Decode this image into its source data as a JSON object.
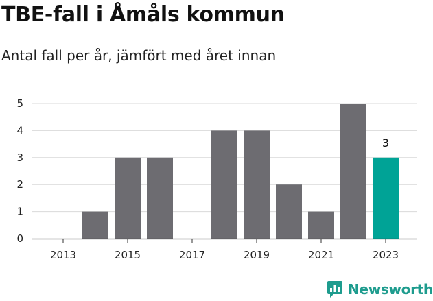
{
  "title": "TBE-fall i Åmåls kommun",
  "subtitle": "Antal fall per år, jämfört med året innan",
  "brand": {
    "name": "Newsworthy",
    "icon": "newsworthy-logo-icon",
    "color": "#1e9c8e"
  },
  "chart_data": {
    "type": "bar",
    "title": "TBE-fall i Åmåls kommun",
    "subtitle": "Antal fall per år, jämfört med året innan",
    "xlabel": "",
    "ylabel": "",
    "categories": [
      "2013",
      "2014",
      "2015",
      "2016",
      "2017",
      "2018",
      "2019",
      "2020",
      "2021",
      "2022",
      "2023"
    ],
    "values": [
      0,
      1,
      3,
      3,
      0,
      4,
      4,
      2,
      1,
      5,
      3
    ],
    "x_tick_labels": [
      "2013",
      "2015",
      "2017",
      "2019",
      "2021",
      "2023"
    ],
    "y_ticks": [
      "0",
      "1",
      "2",
      "3",
      "4",
      "5"
    ],
    "ylim": [
      0,
      5
    ],
    "grid": true,
    "highlight": {
      "category": "2023",
      "value_label": "3"
    },
    "colors": {
      "bar": "#6d6c71",
      "highlight": "#00a396",
      "grid": "#d9d9d9",
      "axis": "#333333"
    }
  }
}
